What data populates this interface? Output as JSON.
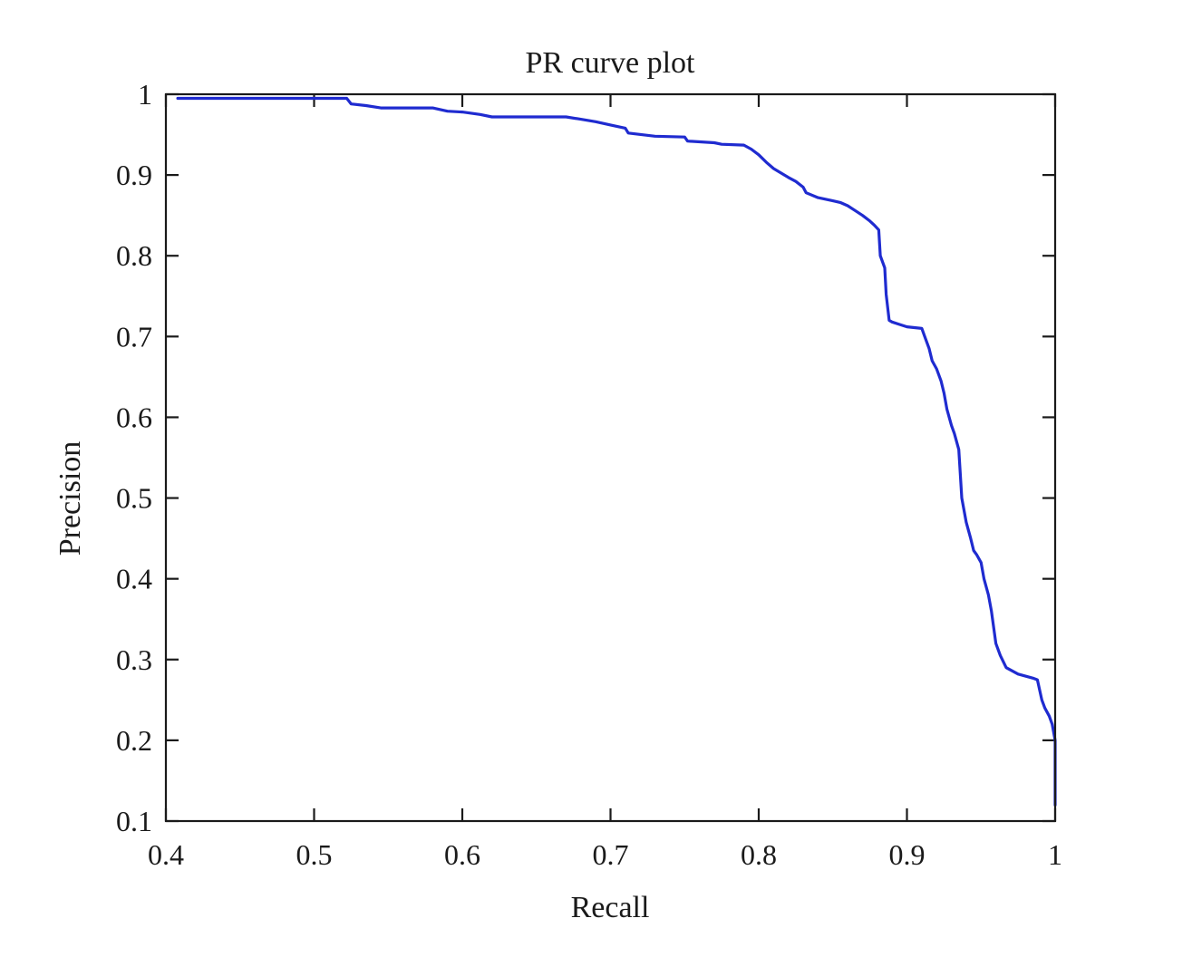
{
  "chart_data": {
    "type": "line",
    "title": "PR curve plot",
    "xlabel": "Recall",
    "ylabel": "Precision",
    "xlim": [
      0.4,
      1
    ],
    "ylim": [
      0.1,
      1
    ],
    "xticks": [
      "0.4",
      "0.5",
      "0.6",
      "0.7",
      "0.8",
      "0.9",
      "1"
    ],
    "yticks": [
      "0.1",
      "0.2",
      "0.3",
      "0.4",
      "0.5",
      "0.6",
      "0.7",
      "0.8",
      "0.9",
      "1"
    ],
    "grid": false,
    "series": [
      {
        "color": "#1f2bd0",
        "x": [
          0.408,
          0.522,
          0.525,
          0.535,
          0.545,
          0.58,
          0.59,
          0.6,
          0.612,
          0.62,
          0.67,
          0.68,
          0.69,
          0.7,
          0.71,
          0.712,
          0.73,
          0.75,
          0.752,
          0.77,
          0.775,
          0.79,
          0.795,
          0.8,
          0.805,
          0.81,
          0.82,
          0.825,
          0.83,
          0.832,
          0.84,
          0.85,
          0.855,
          0.86,
          0.865,
          0.87,
          0.875,
          0.878,
          0.881,
          0.882,
          0.885,
          0.886,
          0.888,
          0.89,
          0.895,
          0.9,
          0.91,
          0.912,
          0.915,
          0.917,
          0.92,
          0.923,
          0.925,
          0.927,
          0.93,
          0.932,
          0.935,
          0.937,
          0.94,
          0.943,
          0.945,
          0.947,
          0.95,
          0.952,
          0.955,
          0.957,
          0.96,
          0.963,
          0.967,
          0.975,
          0.985,
          0.988,
          0.991,
          0.993,
          0.996,
          0.998,
          1.0,
          1.0
        ],
        "y": [
          0.995,
          0.995,
          0.988,
          0.986,
          0.983,
          0.983,
          0.979,
          0.978,
          0.975,
          0.972,
          0.972,
          0.969,
          0.966,
          0.962,
          0.958,
          0.952,
          0.948,
          0.947,
          0.942,
          0.94,
          0.938,
          0.937,
          0.932,
          0.925,
          0.916,
          0.908,
          0.897,
          0.892,
          0.885,
          0.878,
          0.872,
          0.868,
          0.866,
          0.862,
          0.856,
          0.85,
          0.843,
          0.838,
          0.832,
          0.8,
          0.785,
          0.752,
          0.72,
          0.718,
          0.715,
          0.712,
          0.71,
          0.7,
          0.685,
          0.67,
          0.66,
          0.645,
          0.63,
          0.61,
          0.59,
          0.58,
          0.56,
          0.5,
          0.47,
          0.45,
          0.435,
          0.43,
          0.42,
          0.4,
          0.38,
          0.36,
          0.32,
          0.305,
          0.29,
          0.282,
          0.277,
          0.275,
          0.25,
          0.24,
          0.23,
          0.22,
          0.2,
          0.12
        ]
      }
    ]
  }
}
